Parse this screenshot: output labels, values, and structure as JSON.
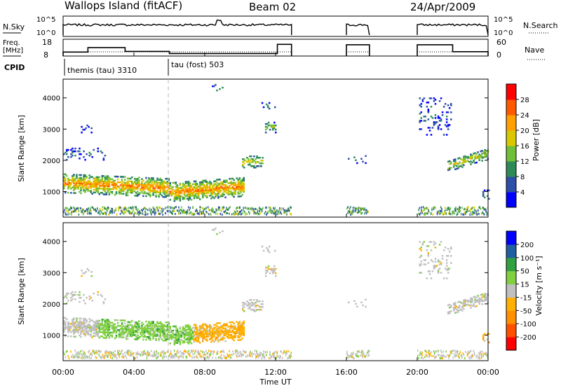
{
  "header": {
    "station": "Wallops Island (fitACF)",
    "beam": "Beam 02",
    "date": "24/Apr/2009"
  },
  "noise_panel": {
    "left_label": "N.Sky",
    "right_label": "N.Search",
    "top_tick": "10^5",
    "bottom_tick": "10^0"
  },
  "freq_panel": {
    "left_label_1": "Freq.",
    "left_label_2": "[MHz]",
    "left_ticks": [
      "18",
      "8"
    ],
    "right_label": "Nave",
    "right_ticks": [
      "60",
      "0"
    ]
  },
  "cpid": {
    "label": "CPID",
    "modes": [
      {
        "name": "themis (tau) 3310",
        "start_hour": 0.0
      },
      {
        "name": "tau (fost) 503",
        "start_hour": 6.0
      }
    ]
  },
  "chart_data": [
    {
      "type": "heatmap",
      "name": "power",
      "ylabel": "Slant Range [km]",
      "y_ticks": [
        "1000",
        "2000",
        "3000",
        "4000"
      ],
      "ylim": [
        180,
        4600
      ],
      "colorbar_label": "Power [dB]",
      "colorbar_ticks": [
        "4",
        "8",
        "12",
        "16",
        "20",
        "24",
        "28"
      ],
      "colorbar_range": [
        0,
        32
      ],
      "colors": [
        "#0000ff",
        "#2e4fa8",
        "#2e8b57",
        "#6fbf3a",
        "#d9c800",
        "#ff9f00",
        "#ff5a00",
        "#ff0000"
      ]
    },
    {
      "type": "heatmap",
      "name": "velocity",
      "ylabel": "Slant Range [km]",
      "y_ticks": [
        "1000",
        "2000",
        "3000",
        "4000"
      ],
      "ylim": [
        180,
        4600
      ],
      "colorbar_label": "Velocity [m s⁻¹]",
      "colorbar_ticks": [
        "-200",
        "-100",
        "-50",
        "-15",
        "15",
        "50",
        "100",
        "200"
      ],
      "colors": [
        "#ff0000",
        "#ff5000",
        "#ff9000",
        "#ffb000",
        "#c0c0c0",
        "#80d040",
        "#30a040",
        "#2060a0",
        "#0000ff"
      ]
    }
  ],
  "x_axis": {
    "label": "Time UT",
    "ticks": [
      "00:00",
      "04:00",
      "08:00",
      "12:00",
      "16:00",
      "20:00",
      "00:00"
    ]
  }
}
